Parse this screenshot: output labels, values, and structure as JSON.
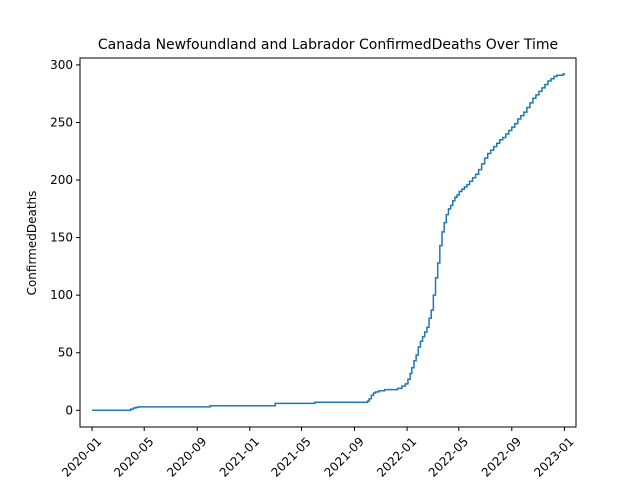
{
  "chart_data": {
    "type": "line",
    "title": "Canada Newfoundland and Labrador ConfirmedDeaths Over Time",
    "xlabel": "",
    "ylabel": "ConfirmedDeaths",
    "grid": false,
    "legend": "none",
    "line_color": "#1f77b4",
    "ylim": [
      -14.5,
      306
    ],
    "xlim": [
      "2019-12-04",
      "2023-01-28"
    ],
    "x_ticks": [
      "2020-01",
      "2020-05",
      "2020-09",
      "2021-01",
      "2021-05",
      "2021-09",
      "2022-01",
      "2022-05",
      "2022-09",
      "2023-01"
    ],
    "x_tick_dates": [
      "2020-01-01",
      "2020-05-01",
      "2020-09-01",
      "2021-01-01",
      "2021-05-01",
      "2021-09-01",
      "2022-01-01",
      "2022-05-01",
      "2022-09-01",
      "2023-01-01"
    ],
    "y_ticks": [
      0,
      50,
      100,
      150,
      200,
      250,
      300
    ],
    "series": [
      {
        "x": [
          "2020-01-01",
          "2020-03-31",
          "2020-04-06",
          "2020-04-12",
          "2020-04-18",
          "2020-10-01",
          "2021-03-01",
          "2021-06-01",
          "2021-10-01",
          "2021-10-05",
          "2021-10-10",
          "2021-10-15",
          "2021-10-20",
          "2021-10-28",
          "2021-11-10",
          "2021-12-10",
          "2021-12-20",
          "2021-12-28",
          "2022-01-03",
          "2022-01-08",
          "2022-01-12",
          "2022-01-17",
          "2022-01-22",
          "2022-01-27",
          "2022-02-01",
          "2022-02-06",
          "2022-02-11",
          "2022-02-16",
          "2022-02-21",
          "2022-02-26",
          "2022-03-03",
          "2022-03-08",
          "2022-03-13",
          "2022-03-18",
          "2022-03-23",
          "2022-03-28",
          "2022-04-02",
          "2022-04-07",
          "2022-04-12",
          "2022-04-17",
          "2022-04-22",
          "2022-04-27",
          "2022-05-02",
          "2022-05-08",
          "2022-05-14",
          "2022-05-20",
          "2022-05-26",
          "2022-06-02",
          "2022-06-09",
          "2022-06-16",
          "2022-06-23",
          "2022-06-30",
          "2022-07-07",
          "2022-07-14",
          "2022-07-21",
          "2022-07-28",
          "2022-08-04",
          "2022-08-11",
          "2022-08-18",
          "2022-08-25",
          "2022-09-01",
          "2022-09-08",
          "2022-09-15",
          "2022-09-22",
          "2022-09-29",
          "2022-10-06",
          "2022-10-13",
          "2022-10-20",
          "2022-10-27",
          "2022-11-03",
          "2022-11-10",
          "2022-11-17",
          "2022-11-24",
          "2022-12-01",
          "2022-12-08",
          "2022-12-15",
          "2022-12-22",
          "2022-12-29",
          "2023-01-01"
        ],
        "values": [
          0,
          1,
          2,
          2.5,
          3,
          4,
          6,
          7,
          8,
          10,
          13,
          15,
          16,
          17,
          18,
          19,
          21,
          23,
          27,
          32,
          37,
          43,
          48,
          55,
          60,
          64,
          68,
          72,
          80,
          87,
          100,
          115,
          128,
          143,
          155,
          163,
          170,
          175,
          178,
          182,
          185,
          187,
          190,
          192,
          194,
          196,
          199,
          202,
          205,
          209,
          214,
          219,
          223,
          226,
          229,
          232,
          235,
          237,
          240,
          243,
          246,
          249,
          253,
          256,
          259,
          263,
          267,
          271,
          274,
          277,
          280,
          283,
          286,
          288,
          290,
          291,
          291,
          292,
          293
        ]
      }
    ]
  }
}
